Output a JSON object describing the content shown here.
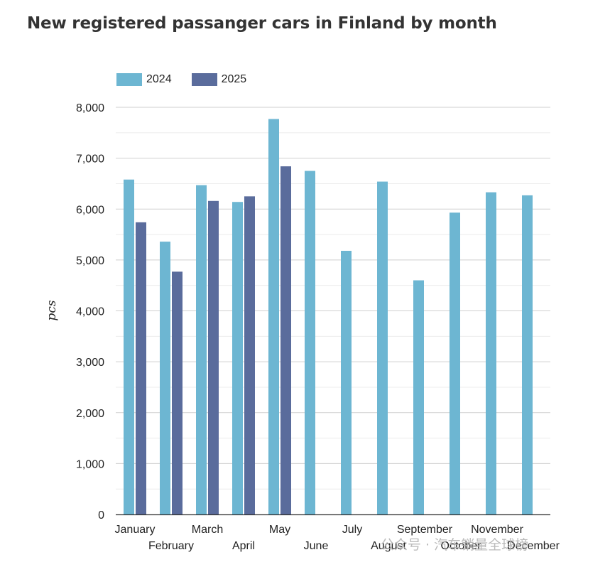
{
  "colors": {
    "series_2024": "#6db6d2",
    "series_2025": "#5a6c9c",
    "grid": "#d9d9d9",
    "axis": "#333333"
  },
  "watermark": "公众号 · 汽车销量全球榜",
  "chart_data": {
    "type": "bar",
    "title": "New registered passanger cars in Finland by month",
    "xlabel": "",
    "ylabel": "pcs",
    "ylim": [
      0,
      8000
    ],
    "yticks": [
      "0",
      "1,000",
      "2,000",
      "3,000",
      "4,000",
      "5,000",
      "6,000",
      "7,000",
      "8,000"
    ],
    "grid": true,
    "legend_position": "top-left",
    "categories": [
      "January",
      "February",
      "March",
      "April",
      "May",
      "June",
      "July",
      "August",
      "September",
      "October",
      "November",
      "December"
    ],
    "series": [
      {
        "name": "2024",
        "values": [
          6580,
          5360,
          6470,
          6140,
          7770,
          6750,
          5180,
          6540,
          4600,
          5930,
          6330,
          6270
        ]
      },
      {
        "name": "2025",
        "values": [
          5740,
          4770,
          6160,
          6250,
          6840,
          null,
          null,
          null,
          null,
          null,
          null,
          null
        ]
      }
    ]
  }
}
